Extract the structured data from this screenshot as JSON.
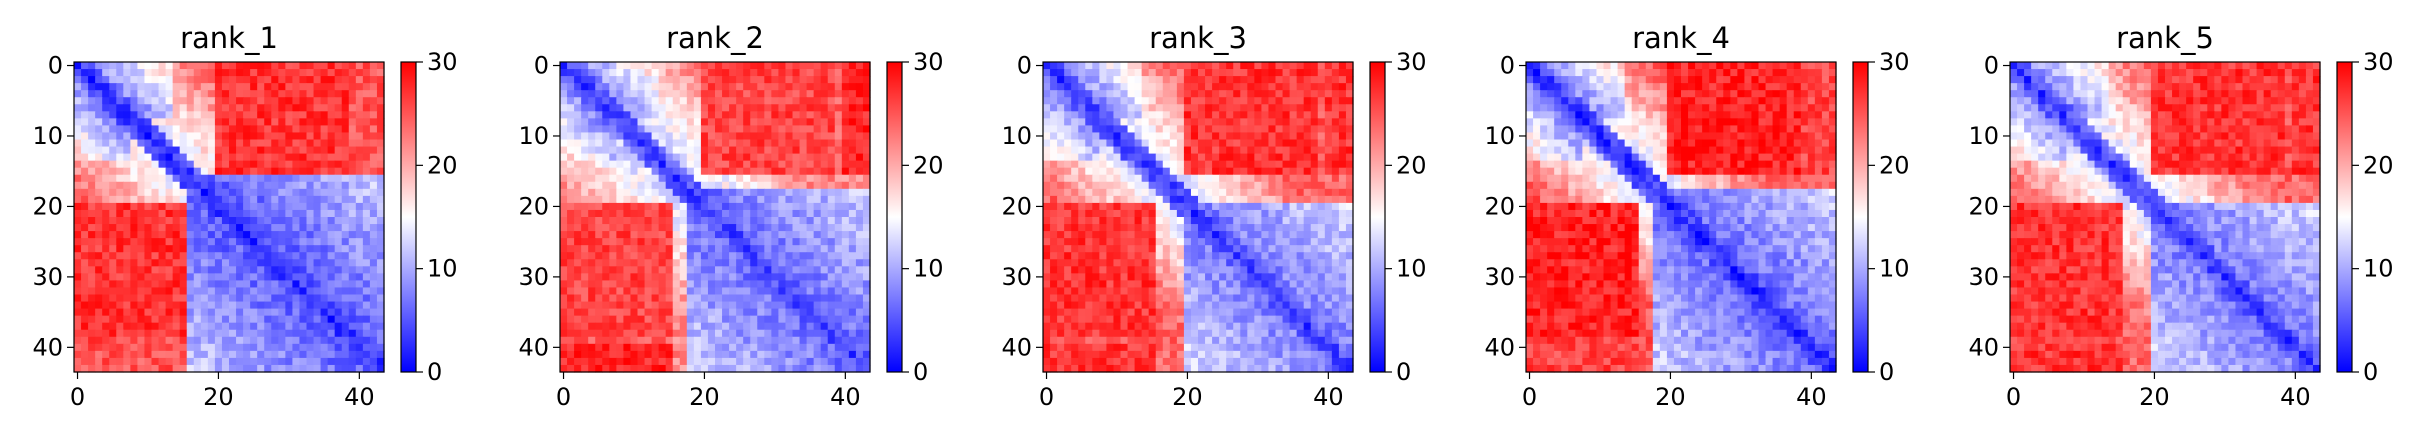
{
  "chart_data": [
    {
      "type": "heatmap",
      "title": "rank_1",
      "rows": 44,
      "cols": 44,
      "xticks": [
        0,
        20,
        40
      ],
      "yticks": [
        0,
        10,
        20,
        30,
        40
      ],
      "colorbar": {
        "min": 0,
        "max": 30,
        "ticks": [
          0,
          10,
          20,
          30
        ],
        "colors": [
          "#0000ff",
          "#ffffff",
          "#ff0000"
        ]
      },
      "pattern": {
        "diag": 2,
        "near": 14,
        "far": 24,
        "far_block": 27,
        "core_lo": 16,
        "core_hi": 44,
        "core_value": 5,
        "lo_edge": 17,
        "hi_edge": 26
      }
    },
    {
      "type": "heatmap",
      "title": "rank_2",
      "rows": 44,
      "cols": 44,
      "xticks": [
        0,
        20,
        40
      ],
      "yticks": [
        0,
        10,
        20,
        30,
        40
      ],
      "colorbar": {
        "min": 0,
        "max": 30,
        "ticks": [
          0,
          10,
          20,
          30
        ],
        "colors": [
          "#0000ff",
          "#ffffff",
          "#ff0000"
        ]
      },
      "pattern": {
        "diag": 3,
        "near": 12,
        "far": 22,
        "far_block": 26,
        "core_lo": 18,
        "core_hi": 44,
        "core_value": 6,
        "lo_edge": 28,
        "hi_edge": 22
      }
    },
    {
      "type": "heatmap",
      "title": "rank_3",
      "rows": 44,
      "cols": 44,
      "xticks": [
        0,
        20,
        40
      ],
      "yticks": [
        0,
        10,
        20,
        30,
        40
      ],
      "colorbar": {
        "min": 0,
        "max": 30,
        "ticks": [
          0,
          10,
          20,
          30
        ],
        "colors": [
          "#0000ff",
          "#ffffff",
          "#ff0000"
        ]
      },
      "pattern": {
        "diag": 3,
        "near": 13,
        "far": 24,
        "far_block": 27,
        "core_lo": 20,
        "core_hi": 44,
        "core_value": 7,
        "lo_edge": 27,
        "hi_edge": 26
      }
    },
    {
      "type": "heatmap",
      "title": "rank_4",
      "rows": 44,
      "cols": 44,
      "xticks": [
        0,
        20,
        40
      ],
      "yticks": [
        0,
        10,
        20,
        30,
        40
      ],
      "colorbar": {
        "min": 0,
        "max": 30,
        "ticks": [
          0,
          10,
          20,
          30
        ],
        "colors": [
          "#0000ff",
          "#ffffff",
          "#ff0000"
        ]
      },
      "pattern": {
        "diag": 2,
        "near": 13,
        "far": 25,
        "far_block": 28,
        "core_lo": 18,
        "core_hi": 44,
        "core_value": 6,
        "lo_edge": 26,
        "hi_edge": 27
      }
    },
    {
      "type": "heatmap",
      "title": "rank_5",
      "rows": 44,
      "cols": 44,
      "xticks": [
        0,
        20,
        40
      ],
      "yticks": [
        0,
        10,
        20,
        30,
        40
      ],
      "colorbar": {
        "min": 0,
        "max": 30,
        "ticks": [
          0,
          10,
          20,
          30
        ],
        "colors": [
          "#0000ff",
          "#ffffff",
          "#ff0000"
        ]
      },
      "pattern": {
        "diag": 3,
        "near": 13,
        "far": 24,
        "far_block": 27,
        "core_lo": 20,
        "core_hi": 44,
        "core_value": 7,
        "lo_edge": 27,
        "hi_edge": 26
      }
    }
  ]
}
